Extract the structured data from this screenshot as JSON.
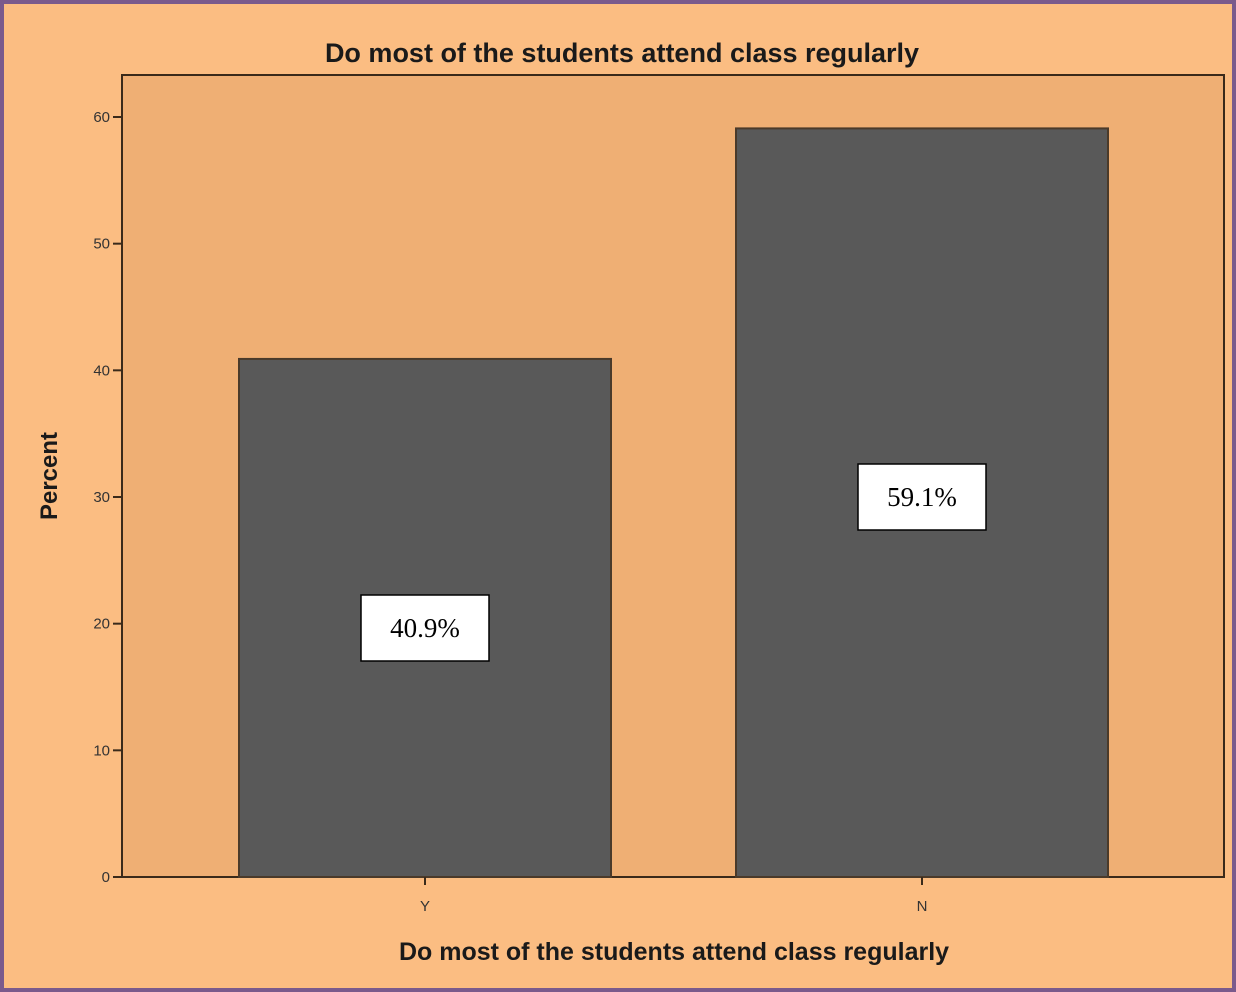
{
  "chart_data": {
    "type": "bar",
    "title": "Do most of the students attend class regularly",
    "xlabel": "Do most of the students attend class regularly",
    "ylabel": "Percent",
    "categories": [
      "Y",
      "N"
    ],
    "values": [
      40.9,
      59.1
    ],
    "value_labels": [
      "40.9%",
      "59.1%"
    ],
    "ylim": [
      0,
      63
    ],
    "yticks": [
      0,
      10,
      20,
      30,
      40,
      50,
      60
    ],
    "grid": false,
    "legend": "none",
    "colors": {
      "page_background": "#fbbd82",
      "plot_background": "#efaf74",
      "bar_fill": "#595959",
      "bar_outline": "#4a3a2a",
      "axis": "#3a2a1a",
      "frame_border": "#7a5a8c",
      "label_box_fill": "#ffffff",
      "label_box_border": "#000000"
    }
  }
}
